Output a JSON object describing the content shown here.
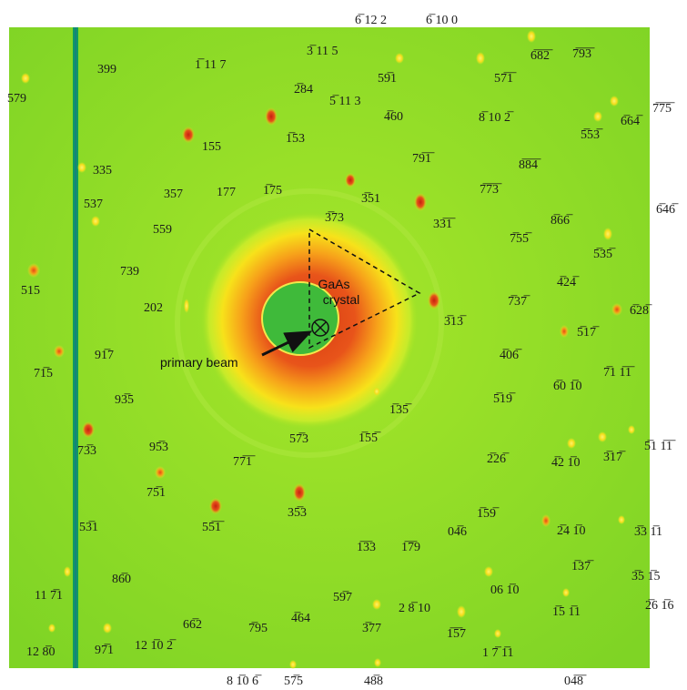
{
  "annotations": {
    "crystal_line1": "GaAs",
    "crystal_line2": "crystal",
    "beam_label": "primary beam"
  },
  "colors": {
    "background": "#8fdc22",
    "halo_outer": "#f7e21a",
    "halo_inner": "#e8441a",
    "core": "#3fba3a",
    "stripe": "#0f9a63"
  },
  "icons": [
    "primary-beam-marker-icon",
    "primary-beam-arrow-icon"
  ],
  "labels": [
    {
      "text": "6̅ 12 2"
    },
    {
      "text": "6̅ 10 0"
    },
    {
      "text": "399"
    },
    {
      "text": "1̅ 11 7"
    },
    {
      "text": "3̅ 11 5"
    },
    {
      "text": "59̅1"
    },
    {
      "text": "57̅1̅"
    },
    {
      "text": "6̅8̅2̅"
    },
    {
      "text": "7̅9̅3̅"
    },
    {
      "text": "579"
    },
    {
      "text": "2̅84"
    },
    {
      "text": "5̅ 11 3"
    },
    {
      "text": "4̅60"
    },
    {
      "text": "8̅ 10 2̅"
    },
    {
      "text": "6̅64̅"
    },
    {
      "text": "7̅7̅5̅"
    },
    {
      "text": "155"
    },
    {
      "text": "1̅53"
    },
    {
      "text": "5̅53̅"
    },
    {
      "text": "335"
    },
    {
      "text": "79̅1̅"
    },
    {
      "text": "8̅8̅4̅"
    },
    {
      "text": "537"
    },
    {
      "text": "357"
    },
    {
      "text": "177"
    },
    {
      "text": "1̅75"
    },
    {
      "text": "3̅51"
    },
    {
      "text": "7̅7̅3̅"
    },
    {
      "text": "559"
    },
    {
      "text": "3̅73"
    },
    {
      "text": "33̅1̅"
    },
    {
      "text": "8̅66̅"
    },
    {
      "text": "6̅46̅"
    },
    {
      "text": "7̅55̅"
    },
    {
      "text": "5̅35̅"
    },
    {
      "text": "739"
    },
    {
      "text": "515"
    },
    {
      "text": "4̅24̅"
    },
    {
      "text": "202"
    },
    {
      "text": "3̅13̅"
    },
    {
      "text": "7̅37̅"
    },
    {
      "text": "6̅28̅"
    },
    {
      "text": "5̅17̅"
    },
    {
      "text": "91̅7"
    },
    {
      "text": "71̅5"
    },
    {
      "text": "4̅06̅"
    },
    {
      "text": "7̅1 1̅1̅"
    },
    {
      "text": "6̅0 1̅0"
    },
    {
      "text": "93̅5"
    },
    {
      "text": "1̅35̅"
    },
    {
      "text": "5̅19̅"
    },
    {
      "text": "73̅3"
    },
    {
      "text": "95̅3"
    },
    {
      "text": "1̅55̅"
    },
    {
      "text": "2̅26̅"
    },
    {
      "text": "4̅2 1̅0"
    },
    {
      "text": "3̅17̅"
    },
    {
      "text": "5̅1 1̅1̅"
    },
    {
      "text": "75̅1"
    },
    {
      "text": "77̅1̅"
    },
    {
      "text": "57̅3"
    },
    {
      "text": "55̅1̅"
    },
    {
      "text": "35̅3"
    },
    {
      "text": "1̅59̅"
    },
    {
      "text": "04̅6"
    },
    {
      "text": "53̅1"
    },
    {
      "text": "1̅3̅3"
    },
    {
      "text": "1̅7̅9"
    },
    {
      "text": "2̅4 1̅0"
    },
    {
      "text": "3̅3 1̅1"
    },
    {
      "text": "86̅0"
    },
    {
      "text": "1̅37̅"
    },
    {
      "text": "11 7̅1"
    },
    {
      "text": "59̅7"
    },
    {
      "text": "06 1̅0"
    },
    {
      "text": "3̅5 1̅5"
    },
    {
      "text": "66̅2"
    },
    {
      "text": "7̅95"
    },
    {
      "text": "4̅64"
    },
    {
      "text": "3̅77"
    },
    {
      "text": "2 8̅ 10"
    },
    {
      "text": "1̅5̅7"
    },
    {
      "text": "1̅5 1̅1"
    },
    {
      "text": "2̅6 1̅6"
    },
    {
      "text": "12 8̅0"
    },
    {
      "text": "97̅1"
    },
    {
      "text": "12 1̅0 2̅"
    },
    {
      "text": "1 7̅ 1̅1"
    },
    {
      "text": "8 1̅0 6̅"
    },
    {
      "text": "57̅5"
    },
    {
      "text": "48̅8"
    },
    {
      "text": "04̅8̅"
    }
  ]
}
